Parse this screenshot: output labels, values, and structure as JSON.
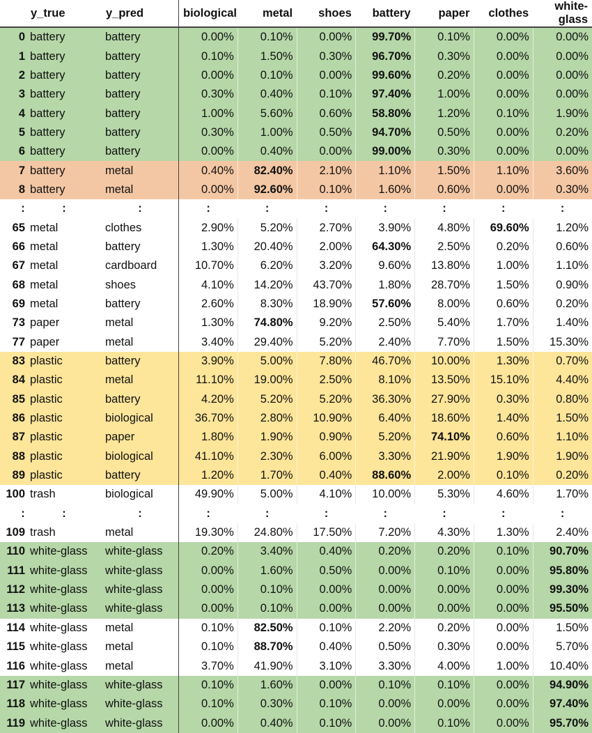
{
  "columns": {
    "idx": "",
    "y_true": "y_true",
    "y_pred": "y_pred",
    "classes": [
      "biological",
      "metal",
      "shoes",
      "battery",
      "paper",
      "clothes",
      "white-glass"
    ]
  },
  "rows": [
    {
      "type": "data",
      "idx": "0",
      "y_true": "battery",
      "y_pred": "battery",
      "hl": "green",
      "values": [
        "0.00%",
        "0.10%",
        "0.00%",
        "99.70%",
        "0.10%",
        "0.00%",
        "0.00%"
      ],
      "bold": [
        3
      ]
    },
    {
      "type": "data",
      "idx": "1",
      "y_true": "battery",
      "y_pred": "battery",
      "hl": "green",
      "values": [
        "0.10%",
        "1.50%",
        "0.30%",
        "96.70%",
        "0.30%",
        "0.00%",
        "0.00%"
      ],
      "bold": [
        3
      ]
    },
    {
      "type": "data",
      "idx": "2",
      "y_true": "battery",
      "y_pred": "battery",
      "hl": "green",
      "values": [
        "0.00%",
        "0.10%",
        "0.00%",
        "99.60%",
        "0.20%",
        "0.00%",
        "0.00%"
      ],
      "bold": [
        3
      ]
    },
    {
      "type": "data",
      "idx": "3",
      "y_true": "battery",
      "y_pred": "battery",
      "hl": "green",
      "values": [
        "0.30%",
        "0.40%",
        "0.10%",
        "97.40%",
        "1.00%",
        "0.00%",
        "0.00%"
      ],
      "bold": [
        3
      ]
    },
    {
      "type": "data",
      "idx": "4",
      "y_true": "battery",
      "y_pred": "battery",
      "hl": "green",
      "values": [
        "1.00%",
        "5.60%",
        "0.60%",
        "58.80%",
        "1.20%",
        "0.10%",
        "1.90%"
      ],
      "bold": [
        3
      ]
    },
    {
      "type": "data",
      "idx": "5",
      "y_true": "battery",
      "y_pred": "battery",
      "hl": "green",
      "values": [
        "0.30%",
        "1.00%",
        "0.50%",
        "94.70%",
        "0.50%",
        "0.00%",
        "0.20%"
      ],
      "bold": [
        3
      ]
    },
    {
      "type": "data",
      "idx": "6",
      "y_true": "battery",
      "y_pred": "battery",
      "hl": "green",
      "values": [
        "0.00%",
        "0.40%",
        "0.00%",
        "99.00%",
        "0.30%",
        "0.00%",
        "0.00%"
      ],
      "bold": [
        3
      ]
    },
    {
      "type": "data",
      "idx": "7",
      "y_true": "battery",
      "y_pred": "metal",
      "hl": "red",
      "values": [
        "0.40%",
        "82.40%",
        "2.10%",
        "1.10%",
        "1.50%",
        "1.10%",
        "3.60%"
      ],
      "bold": [
        1
      ]
    },
    {
      "type": "data",
      "idx": "8",
      "y_true": "battery",
      "y_pred": "metal",
      "hl": "red",
      "values": [
        "0.00%",
        "92.60%",
        "0.10%",
        "1.60%",
        "0.60%",
        "0.00%",
        "0.30%"
      ],
      "bold": [
        1
      ]
    },
    {
      "type": "ellipsis",
      "glyph": ":"
    },
    {
      "type": "data",
      "idx": "65",
      "y_true": "metal",
      "y_pred": "clothes",
      "hl": "",
      "values": [
        "2.90%",
        "5.20%",
        "2.70%",
        "3.90%",
        "4.80%",
        "69.60%",
        "1.20%"
      ],
      "bold": [
        5
      ]
    },
    {
      "type": "data",
      "idx": "66",
      "y_true": "metal",
      "y_pred": "battery",
      "hl": "",
      "values": [
        "1.30%",
        "20.40%",
        "2.00%",
        "64.30%",
        "2.50%",
        "0.20%",
        "0.60%"
      ],
      "bold": [
        3
      ]
    },
    {
      "type": "data",
      "idx": "67",
      "y_true": "metal",
      "y_pred": "cardboard",
      "hl": "",
      "values": [
        "10.70%",
        "6.20%",
        "3.20%",
        "9.60%",
        "13.80%",
        "1.00%",
        "1.10%"
      ],
      "bold": []
    },
    {
      "type": "data",
      "idx": "68",
      "y_true": "metal",
      "y_pred": "shoes",
      "hl": "",
      "values": [
        "4.10%",
        "14.20%",
        "43.70%",
        "1.80%",
        "28.70%",
        "1.50%",
        "0.90%"
      ],
      "bold": []
    },
    {
      "type": "data",
      "idx": "69",
      "y_true": "metal",
      "y_pred": "battery",
      "hl": "",
      "values": [
        "2.60%",
        "8.30%",
        "18.90%",
        "57.60%",
        "8.00%",
        "0.60%",
        "0.20%"
      ],
      "bold": [
        3
      ]
    },
    {
      "type": "data",
      "idx": "73",
      "y_true": "paper",
      "y_pred": "metal",
      "hl": "",
      "values": [
        "1.30%",
        "74.80%",
        "9.20%",
        "2.50%",
        "5.40%",
        "1.70%",
        "1.40%"
      ],
      "bold": [
        1
      ]
    },
    {
      "type": "data",
      "idx": "77",
      "y_true": "paper",
      "y_pred": "metal",
      "hl": "",
      "values": [
        "3.40%",
        "29.40%",
        "5.20%",
        "2.40%",
        "7.70%",
        "1.50%",
        "15.30%"
      ],
      "bold": []
    },
    {
      "type": "data",
      "idx": "83",
      "y_true": "plastic",
      "y_pred": "battery",
      "hl": "yellow",
      "values": [
        "3.90%",
        "5.00%",
        "7.80%",
        "46.70%",
        "10.00%",
        "1.30%",
        "0.70%"
      ],
      "bold": []
    },
    {
      "type": "data",
      "idx": "84",
      "y_true": "plastic",
      "y_pred": "metal",
      "hl": "yellow",
      "values": [
        "11.10%",
        "19.00%",
        "2.50%",
        "8.10%",
        "13.50%",
        "15.10%",
        "4.40%"
      ],
      "bold": []
    },
    {
      "type": "data",
      "idx": "85",
      "y_true": "plastic",
      "y_pred": "battery",
      "hl": "yellow",
      "values": [
        "4.20%",
        "5.20%",
        "5.20%",
        "36.30%",
        "27.90%",
        "0.30%",
        "0.80%"
      ],
      "bold": []
    },
    {
      "type": "data",
      "idx": "86",
      "y_true": "plastic",
      "y_pred": "biological",
      "hl": "yellow",
      "values": [
        "36.70%",
        "2.80%",
        "10.90%",
        "6.40%",
        "18.60%",
        "1.40%",
        "1.50%"
      ],
      "bold": []
    },
    {
      "type": "data",
      "idx": "87",
      "y_true": "plastic",
      "y_pred": "paper",
      "hl": "yellow",
      "values": [
        "1.80%",
        "1.90%",
        "0.90%",
        "5.20%",
        "74.10%",
        "0.60%",
        "1.10%"
      ],
      "bold": [
        4
      ]
    },
    {
      "type": "data",
      "idx": "88",
      "y_true": "plastic",
      "y_pred": "biological",
      "hl": "yellow",
      "values": [
        "41.10%",
        "2.30%",
        "6.00%",
        "3.30%",
        "21.90%",
        "1.90%",
        "1.90%"
      ],
      "bold": []
    },
    {
      "type": "data",
      "idx": "89",
      "y_true": "plastic",
      "y_pred": "battery",
      "hl": "yellow",
      "values": [
        "1.20%",
        "1.70%",
        "0.40%",
        "88.60%",
        "2.00%",
        "0.10%",
        "0.20%"
      ],
      "bold": [
        3
      ]
    },
    {
      "type": "data",
      "idx": "100",
      "y_true": "trash",
      "y_pred": "biological",
      "hl": "",
      "values": [
        "49.90%",
        "5.00%",
        "4.10%",
        "10.00%",
        "5.30%",
        "4.60%",
        "1.70%"
      ],
      "bold": []
    },
    {
      "type": "ellipsis",
      "glyph": ":"
    },
    {
      "type": "data",
      "idx": "109",
      "y_true": "trash",
      "y_pred": "metal",
      "hl": "",
      "values": [
        "19.30%",
        "24.80%",
        "17.50%",
        "7.20%",
        "4.30%",
        "1.30%",
        "2.40%"
      ],
      "bold": []
    },
    {
      "type": "data",
      "idx": "110",
      "y_true": "white-glass",
      "y_pred": "white-glass",
      "hl": "green",
      "values": [
        "0.20%",
        "3.40%",
        "0.40%",
        "0.20%",
        "0.20%",
        "0.10%",
        "90.70%"
      ],
      "bold": [
        6
      ]
    },
    {
      "type": "data",
      "idx": "111",
      "y_true": "white-glass",
      "y_pred": "white-glass",
      "hl": "green",
      "values": [
        "0.00%",
        "1.60%",
        "0.50%",
        "0.00%",
        "0.10%",
        "0.00%",
        "95.80%"
      ],
      "bold": [
        6
      ]
    },
    {
      "type": "data",
      "idx": "112",
      "y_true": "white-glass",
      "y_pred": "white-glass",
      "hl": "green",
      "values": [
        "0.00%",
        "0.10%",
        "0.00%",
        "0.00%",
        "0.00%",
        "0.00%",
        "99.30%"
      ],
      "bold": [
        6
      ]
    },
    {
      "type": "data",
      "idx": "113",
      "y_true": "white-glass",
      "y_pred": "white-glass",
      "hl": "green",
      "values": [
        "0.00%",
        "0.10%",
        "0.00%",
        "0.00%",
        "0.00%",
        "0.00%",
        "95.50%"
      ],
      "bold": [
        6
      ]
    },
    {
      "type": "data",
      "idx": "114",
      "y_true": "white-glass",
      "y_pred": "metal",
      "hl": "",
      "values": [
        "0.10%",
        "82.50%",
        "0.10%",
        "2.20%",
        "0.20%",
        "0.00%",
        "1.50%"
      ],
      "bold": [
        1
      ]
    },
    {
      "type": "data",
      "idx": "115",
      "y_true": "white-glass",
      "y_pred": "metal",
      "hl": "",
      "values": [
        "0.10%",
        "88.70%",
        "0.40%",
        "0.50%",
        "0.30%",
        "0.00%",
        "5.70%"
      ],
      "bold": [
        1
      ]
    },
    {
      "type": "data",
      "idx": "116",
      "y_true": "white-glass",
      "y_pred": "metal",
      "hl": "",
      "values": [
        "3.70%",
        "41.90%",
        "3.10%",
        "3.30%",
        "4.00%",
        "1.00%",
        "10.40%"
      ],
      "bold": []
    },
    {
      "type": "data",
      "idx": "117",
      "y_true": "white-glass",
      "y_pred": "white-glass",
      "hl": "green",
      "values": [
        "0.10%",
        "1.60%",
        "0.00%",
        "0.10%",
        "0.10%",
        "0.00%",
        "94.90%"
      ],
      "bold": [
        6
      ]
    },
    {
      "type": "data",
      "idx": "118",
      "y_true": "white-glass",
      "y_pred": "white-glass",
      "hl": "green",
      "values": [
        "0.10%",
        "0.30%",
        "0.10%",
        "0.00%",
        "0.00%",
        "0.00%",
        "97.40%"
      ],
      "bold": [
        6
      ]
    },
    {
      "type": "data",
      "idx": "119",
      "y_true": "white-glass",
      "y_pred": "white-glass",
      "hl": "green",
      "values": [
        "0.00%",
        "0.40%",
        "0.10%",
        "0.00%",
        "0.10%",
        "0.00%",
        "95.70%"
      ],
      "bold": [
        6
      ]
    }
  ],
  "highlight_colors": {
    "green": "#b6d7a8",
    "red": "#f4c7a4",
    "yellow": "#fde59a"
  }
}
